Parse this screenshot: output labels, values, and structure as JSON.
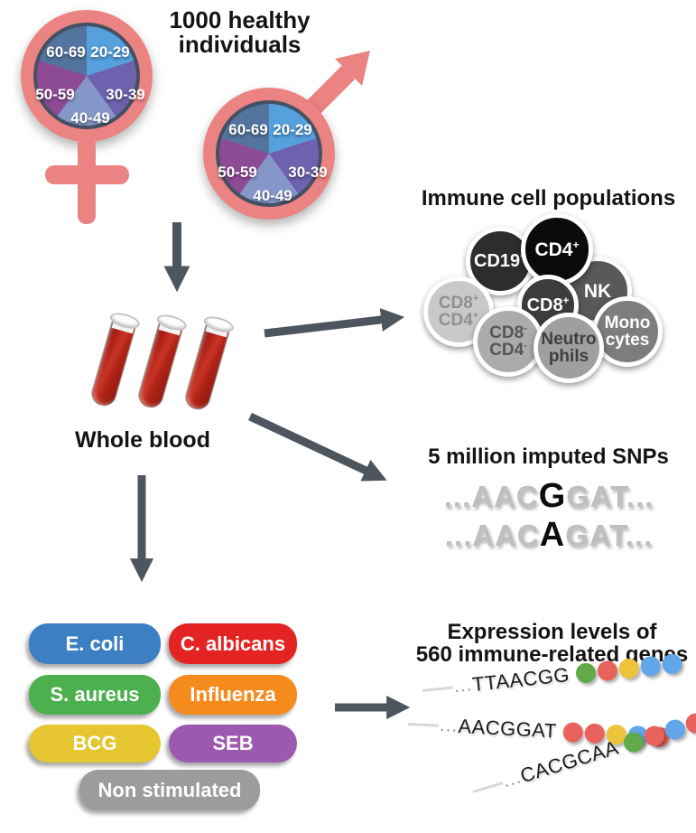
{
  "title": {
    "line1": "1000 healthy",
    "line2": "individuals"
  },
  "demographics": {
    "symbol_color": "#ec8383",
    "age_groups": [
      {
        "label": "20-29",
        "color": "#55a0dd"
      },
      {
        "label": "30-39",
        "color": "#6e61ae"
      },
      {
        "label": "40-49",
        "color": "#8597c9"
      },
      {
        "label": "50-59",
        "color": "#8d4b95"
      },
      {
        "label": "60-69",
        "color": "#53749f"
      }
    ]
  },
  "blood": {
    "label": "Whole blood"
  },
  "immune": {
    "heading": "Immune cell populations",
    "cells": [
      {
        "id": "cd19",
        "lines": [
          {
            "t": "CD19",
            "s": "+"
          }
        ],
        "bg": "#2d2d2d",
        "fg": "#ffffff"
      },
      {
        "id": "cd4",
        "lines": [
          {
            "t": "CD4",
            "s": "+"
          }
        ],
        "bg": "#0b0b0b",
        "fg": "#ffffff"
      },
      {
        "id": "nk",
        "lines": [
          {
            "t": "NK",
            "s": ""
          }
        ],
        "bg": "#595959",
        "fg": "#ffffff"
      },
      {
        "id": "cd8",
        "lines": [
          {
            "t": "CD8",
            "s": "+"
          }
        ],
        "bg": "#3c3c3c",
        "fg": "#ffffff"
      },
      {
        "id": "cd8pos-cd4pos",
        "lines": [
          {
            "t": "CD8",
            "s": "+"
          },
          {
            "t": "CD4",
            "s": "+"
          }
        ],
        "bg": "#c9c9c9",
        "fg": "#8f8f8f"
      },
      {
        "id": "cd8neg-cd4neg",
        "lines": [
          {
            "t": "CD8",
            "s": "-"
          },
          {
            "t": "CD4",
            "s": "-"
          }
        ],
        "bg": "#ababab",
        "fg": "#555555"
      },
      {
        "id": "neutrophils",
        "lines": [
          {
            "t": "Neutro",
            "s": ""
          },
          {
            "t": "phils",
            "s": ""
          }
        ],
        "bg": "#9f9f9f",
        "fg": "#3f3f3f"
      },
      {
        "id": "monocytes",
        "lines": [
          {
            "t": "Mono",
            "s": ""
          },
          {
            "t": "cytes",
            "s": ""
          }
        ],
        "bg": "#7d7d7d",
        "fg": "#ffffff"
      }
    ]
  },
  "snps": {
    "heading": "5 million imputed SNPs",
    "rows": [
      {
        "pre": "...AAC",
        "variant": "G",
        "post": "GAT..."
      },
      {
        "pre": "...AAC",
        "variant": "A",
        "post": "GAT..."
      }
    ]
  },
  "stimulations": [
    {
      "label": "E. coli",
      "color": "#3c80c3"
    },
    {
      "label": "C. albicans",
      "color": "#e32423"
    },
    {
      "label": "S. aureus",
      "color": "#4cb04e"
    },
    {
      "label": "Influenza",
      "color": "#f68b1d"
    },
    {
      "label": "BCG",
      "color": "#e5c630"
    },
    {
      "label": "SEB",
      "color": "#9d58b0"
    },
    {
      "label": "Non stimulated",
      "color": "#9c9c9c"
    }
  ],
  "expression": {
    "heading_line1": "Expression levels of",
    "heading_line2": "560 immune-related genes",
    "dot_colors": {
      "green": "#60ab47",
      "red": "#e9625c",
      "yellow": "#eec33c",
      "blue": "#61a6e9"
    },
    "rows": [
      {
        "ellipsis": "...",
        "sequence": "TTAACGG",
        "dots": [
          "green",
          "red",
          "yellow",
          "blue",
          "blue"
        ]
      },
      {
        "ellipsis": "...",
        "sequence": "AACGGAT",
        "dots": [
          "red",
          "red",
          "yellow",
          "blue",
          "red"
        ]
      },
      {
        "ellipsis": "...",
        "sequence": "CACGCAA",
        "dots": [
          "green",
          "red",
          "blue",
          "red",
          "red"
        ]
      }
    ]
  },
  "arrow_color": "#4d555e"
}
